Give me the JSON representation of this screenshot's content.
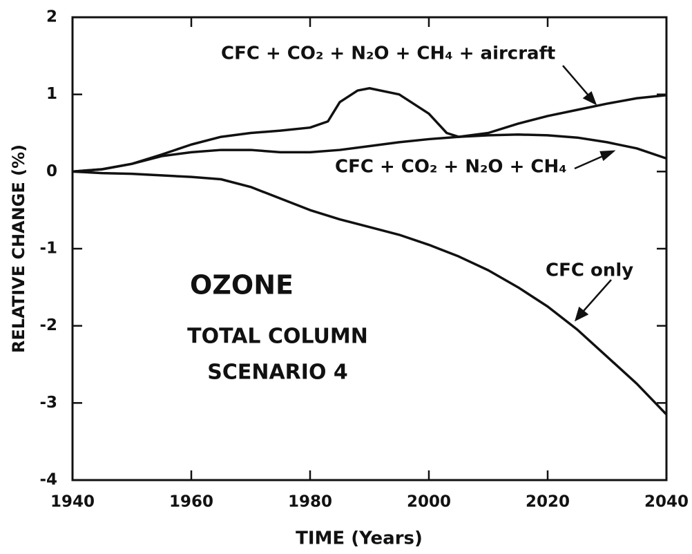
{
  "chart_data": {
    "type": "line",
    "xlabel": "TIME (Years)",
    "ylabel": "RELATIVE CHANGE (%)",
    "xlim": [
      1940,
      2040
    ],
    "xticks": [
      1940,
      1960,
      1980,
      2000,
      2020,
      2040
    ],
    "ylim": [
      -4,
      2
    ],
    "yticks": [
      -4,
      -3,
      -2,
      -1,
      0,
      1,
      2
    ],
    "grid": false,
    "annotations": [
      "OZONE",
      "TOTAL COLUMN",
      "SCENARIO 4"
    ],
    "series": [
      {
        "name": "CFC + CO₂ + N₂O + CH₄ + aircraft",
        "color": "#111111",
        "x": [
          1940,
          1945,
          1950,
          1955,
          1960,
          1965,
          1970,
          1975,
          1980,
          1983,
          1985,
          1988,
          1990,
          1995,
          2000,
          2003,
          2005,
          2010,
          2015,
          2020,
          2025,
          2030,
          2035,
          2040
        ],
        "values": [
          0,
          0.03,
          0.1,
          0.22,
          0.35,
          0.45,
          0.5,
          0.53,
          0.57,
          0.65,
          0.9,
          1.05,
          1.08,
          1.0,
          0.75,
          0.5,
          0.45,
          0.5,
          0.62,
          0.72,
          0.8,
          0.88,
          0.95,
          0.99
        ]
      },
      {
        "name": "CFC + CO₂ + N₂O + CH₄",
        "color": "#111111",
        "x": [
          1940,
          1945,
          1950,
          1955,
          1960,
          1965,
          1970,
          1975,
          1980,
          1985,
          1990,
          1995,
          2000,
          2005,
          2010,
          2015,
          2020,
          2025,
          2030,
          2035,
          2040
        ],
        "values": [
          0,
          0.03,
          0.1,
          0.2,
          0.25,
          0.28,
          0.28,
          0.25,
          0.25,
          0.28,
          0.33,
          0.38,
          0.42,
          0.45,
          0.47,
          0.48,
          0.47,
          0.44,
          0.38,
          0.3,
          0.17
        ]
      },
      {
        "name": "CFC only",
        "color": "#111111",
        "x": [
          1940,
          1945,
          1950,
          1955,
          1960,
          1965,
          1970,
          1975,
          1980,
          1985,
          1990,
          1995,
          2000,
          2005,
          2010,
          2015,
          2020,
          2025,
          2030,
          2035,
          2040
        ],
        "values": [
          0,
          -0.02,
          -0.03,
          -0.05,
          -0.07,
          -0.1,
          -0.2,
          -0.35,
          -0.5,
          -0.62,
          -0.72,
          -0.82,
          -0.95,
          -1.1,
          -1.28,
          -1.5,
          -1.75,
          -2.05,
          -2.4,
          -2.75,
          -3.15
        ]
      }
    ]
  }
}
